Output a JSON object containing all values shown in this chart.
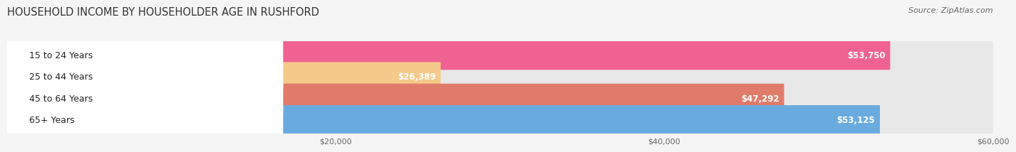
{
  "title": "HOUSEHOLD INCOME BY HOUSEHOLDER AGE IN RUSHFORD",
  "source": "Source: ZipAtlas.com",
  "categories": [
    "15 to 24 Years",
    "25 to 44 Years",
    "45 to 64 Years",
    "65+ Years"
  ],
  "values": [
    53750,
    26389,
    47292,
    53125
  ],
  "bar_colors": [
    "#f06292",
    "#f5c98a",
    "#e07b6a",
    "#6aabdf"
  ],
  "bar_bg_color": "#e8e8e8",
  "value_labels": [
    "$53,750",
    "$26,389",
    "$47,292",
    "$53,125"
  ],
  "xlim_min": 0,
  "xlim_max": 60000,
  "xticks": [
    20000,
    40000,
    60000
  ],
  "xtick_labels": [
    "$20,000",
    "$40,000",
    "$60,000"
  ],
  "title_fontsize": 10.5,
  "source_fontsize": 8,
  "label_fontsize": 9,
  "value_fontsize": 8.5,
  "tick_fontsize": 8,
  "background_color": "#f5f5f5",
  "row_bg_color": "#f0f0f0"
}
